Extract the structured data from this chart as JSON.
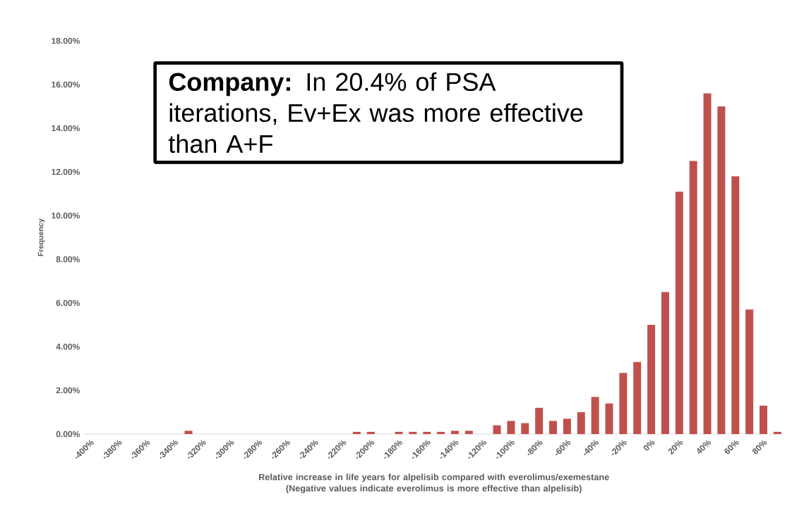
{
  "chart_data": {
    "type": "bar",
    "xlabel": "Relative increase in life years for alpelisib compared with everolimus/exemestane (Negative values indicate everolimus is more effective than alpelisib)",
    "ylabel": "Frequency",
    "annotations": [
      "**Company:** In 20.4% of PSA iterations, Ev+Ex was more effective than A+F"
    ],
    "categories": [
      "-400%",
      null,
      "-380%",
      null,
      "-360%",
      null,
      "-340%",
      null,
      "-320%",
      null,
      "-300%",
      null,
      "-280%",
      null,
      "-260%",
      null,
      "-240%",
      null,
      "-220%",
      null,
      "-200%",
      null,
      "-180%",
      null,
      "-160%",
      null,
      "-140%",
      null,
      "-120%",
      null,
      "-100%",
      null,
      "-80%",
      null,
      "-60%",
      null,
      "-40%",
      null,
      "-20%",
      null,
      "0%",
      null,
      "20%",
      null,
      "40%",
      null,
      "60%",
      null,
      "80%",
      null
    ],
    "values": [
      0,
      0,
      0,
      0,
      0,
      0,
      0,
      0.15,
      0,
      0,
      0,
      0,
      0,
      0,
      0,
      0,
      0,
      0,
      0,
      0.1,
      0.1,
      0,
      0.1,
      0.1,
      0.1,
      0.1,
      0.15,
      0.15,
      0,
      0.4,
      0.6,
      0.5,
      1.2,
      0.6,
      0.7,
      1.0,
      1.7,
      1.4,
      2.8,
      3.3,
      5.0,
      6.5,
      11.1,
      12.5,
      15.6,
      15.0,
      11.8,
      5.7,
      1.3,
      0.1
    ],
    "color": "#c0504d",
    "ylim": [
      0,
      18
    ],
    "yticks": [
      {
        "value": 0,
        "label": "0.00%"
      },
      {
        "value": 2,
        "label": "2.00%"
      },
      {
        "value": 4,
        "label": "4.00%"
      },
      {
        "value": 6,
        "label": "6.00%"
      },
      {
        "value": 8,
        "label": "8.00%"
      },
      {
        "value": 10,
        "label": "10.00%"
      },
      {
        "value": 12,
        "label": "12.00%"
      },
      {
        "value": 14,
        "label": "14.00%"
      },
      {
        "value": 16,
        "label": "16.00%"
      },
      {
        "value": 18,
        "label": "18.00%"
      }
    ]
  }
}
